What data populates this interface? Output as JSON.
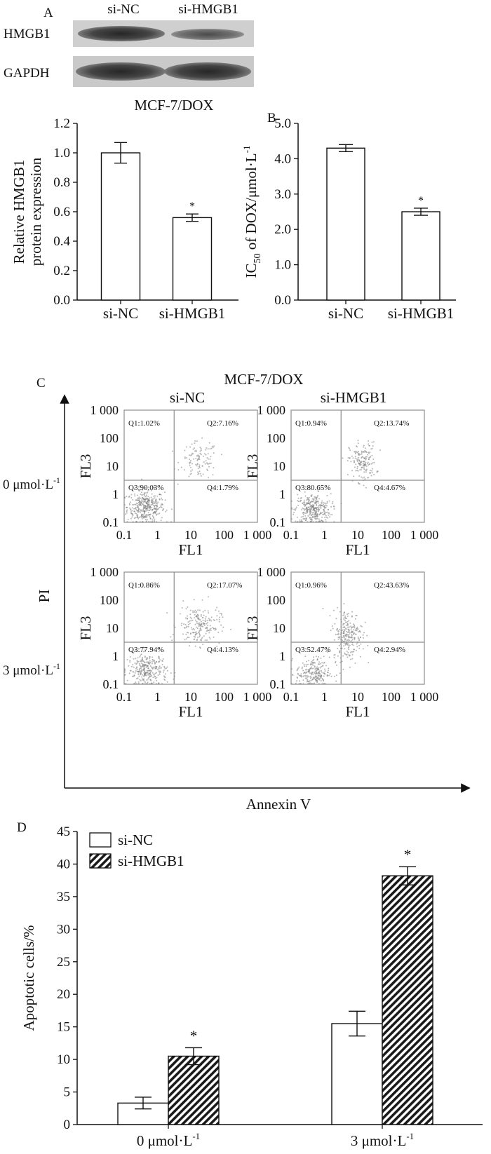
{
  "panel_a": {
    "letter": "A",
    "lanes": [
      "si-NC",
      "si-HMGB1"
    ],
    "blots": [
      "HMGB1",
      "GAPDH"
    ],
    "caption": "MCF-7/DOX"
  },
  "panel_b": {
    "letter": "B"
  },
  "panel_c": {
    "letter": "C",
    "title": "MCF-7/DOX",
    "col_titles": [
      "si-NC",
      "si-HMGB1"
    ],
    "row_labels": [
      "0 μmol·L",
      "3 μmol·L"
    ],
    "row_label_sup": "-1",
    "y_axis": "PI",
    "x_axis": "Annexin V",
    "plot_xlabel": "FL1",
    "plot_ylabel": "FL3",
    "ticks": [
      "0.1",
      "1",
      "10",
      "100",
      "1 000"
    ]
  },
  "panel_d": {
    "letter": "D"
  },
  "chart_data": [
    {
      "id": "A",
      "type": "bar",
      "categories": [
        "si-NC",
        "si-HMGB1"
      ],
      "values": [
        1.0,
        0.56
      ],
      "errors": [
        0.07,
        0.025
      ],
      "significance": [
        "",
        "*"
      ],
      "ylabel_lines": [
        "Relative HMGB1",
        "protein expression"
      ],
      "ylim": [
        0,
        1.2
      ],
      "yticks": [
        "0.0",
        "0.2",
        "0.4",
        "0.6",
        "0.8",
        "1.0",
        "1.2"
      ]
    },
    {
      "id": "B",
      "type": "bar",
      "categories": [
        "si-NC",
        "si-HMGB1"
      ],
      "values": [
        4.3,
        2.5
      ],
      "errors": [
        0.1,
        0.1
      ],
      "significance": [
        "",
        "*"
      ],
      "ylabel": "IC50 of DOX/μmol·L-1",
      "ylabel_parts": [
        "IC",
        "50",
        " of DOX/μmol·L",
        "-1"
      ],
      "ylim": [
        0,
        5
      ],
      "yticks": [
        "0.0",
        "1.0",
        "2.0",
        "3.0",
        "4.0",
        "5.0"
      ]
    },
    {
      "id": "C",
      "type": "scatter",
      "title": "MCF-7/DOX",
      "axis_range": [
        0.1,
        1000
      ],
      "panels": [
        {
          "row": "0 μmol·L-1",
          "col": "si-NC",
          "quadrants": [
            "Q1:1.02%",
            "Q2:7.16%",
            "Q3:90.03%",
            "Q4:1.79%"
          ]
        },
        {
          "row": "0 μmol·L-1",
          "col": "si-HMGB1",
          "quadrants": [
            "Q1:0.94%",
            "Q2:13.74%",
            "Q3:80.65%",
            "Q4:4.67%"
          ]
        },
        {
          "row": "3 μmol·L-1",
          "col": "si-NC",
          "quadrants": [
            "Q1:0.86%",
            "Q2:17.07%",
            "Q3:77.94%",
            "Q4:4.13%"
          ]
        },
        {
          "row": "3 μmol·L-1",
          "col": "si-HMGB1",
          "quadrants": [
            "Q1:0.96%",
            "Q2:43.63%",
            "Q3:52.47%",
            "Q4:2.94%"
          ]
        }
      ]
    },
    {
      "id": "D",
      "type": "bar",
      "categories": [
        "0 μmol·L-1",
        "3 μmol·L-1"
      ],
      "category_parts": [
        [
          "0 μmol·L",
          "-1"
        ],
        [
          "3 μmol·L",
          "-1"
        ]
      ],
      "series": [
        {
          "name": "si-NC",
          "values": [
            3.3,
            15.5
          ],
          "errors": [
            0.9,
            1.9
          ]
        },
        {
          "name": "si-HMGB1",
          "values": [
            10.5,
            38.2
          ],
          "errors": [
            1.3,
            1.4
          ]
        }
      ],
      "significance": [
        "*",
        "*"
      ],
      "ylabel": "Apoptotic cells/%",
      "ylim": [
        0,
        45
      ],
      "yticks": [
        "0",
        "5",
        "10",
        "15",
        "20",
        "25",
        "30",
        "35",
        "40",
        "45"
      ],
      "legend_position": "top-left"
    }
  ]
}
